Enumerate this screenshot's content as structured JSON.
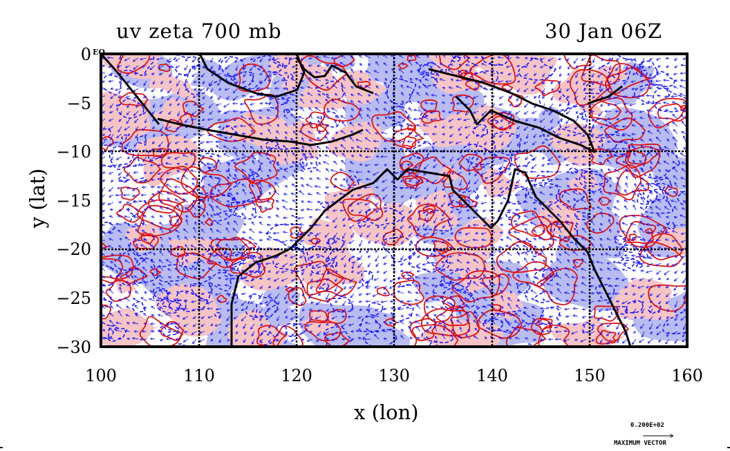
{
  "title": {
    "left": "uv zeta 700 mb",
    "right": "30 Jan 06Z"
  },
  "axes": {
    "xlabel": "x (lon)",
    "ylabel": "y (lat)",
    "x_ticks": [
      "100",
      "110",
      "120",
      "130",
      "140",
      "150",
      "160"
    ],
    "y_ticks": [
      "0",
      "−5",
      "−10",
      "−15",
      "−20",
      "−25",
      "−30"
    ],
    "x_range": [
      100,
      160
    ],
    "y_range": [
      -30,
      0
    ],
    "grid_lon": [
      110,
      120,
      130,
      140,
      150
    ],
    "grid_lat": [
      -10,
      -20
    ]
  },
  "corner_label": "EQ",
  "vector_legend": {
    "value": "0.200E+02",
    "label": "MAXIMUM VECTOR"
  },
  "colors": {
    "positive_fill": "#f5c4c4",
    "positive_contour": "#e01010",
    "negative_fill": "#b8bcf0",
    "negative_contour": "#1a1aff",
    "coastline": "#000000",
    "vectors": "#1a1aff"
  }
}
